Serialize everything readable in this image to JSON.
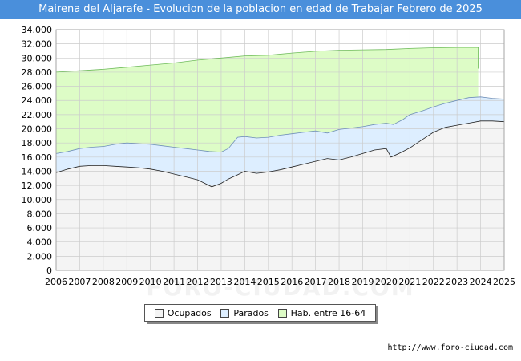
{
  "title": "Mairena del Aljarafe - Evolucion de la poblacion en edad de Trabajar Febrero de 2025",
  "source_url": "http://www.foro-ciudad.com",
  "watermark": "FORO-CIUDAD.COM",
  "colors": {
    "title_bg": "#4a8fdb",
    "hab_fill": "#ddfcc6",
    "hab_line": "#6fbb5b",
    "parados_fill": "#ddeeff",
    "parados_line": "#6f8fb8",
    "ocupados_fill": "#f4f4f4",
    "ocupados_line": "#222222",
    "grid": "#cccccc"
  },
  "legend": [
    {
      "label": "Ocupados",
      "color": "#f4f4f4"
    },
    {
      "label": "Parados",
      "color": "#ddeeff"
    },
    {
      "label": "Hab. entre 16-64",
      "color": "#ddfcc6"
    }
  ],
  "chart_data": {
    "type": "area",
    "title": "Mairena del Aljarafe - Evolucion de la poblacion en edad de Trabajar Febrero de 2025",
    "xlabel": "",
    "ylabel": "",
    "xlim": [
      2006,
      2025
    ],
    "ylim": [
      0,
      34000
    ],
    "x_ticks": [
      "2006",
      "2007",
      "2008",
      "2009",
      "2010",
      "2011",
      "2012",
      "2013",
      "2014",
      "2015",
      "2016",
      "2017",
      "2018",
      "2019",
      "2020",
      "2021",
      "2022",
      "2023",
      "2024",
      "2025"
    ],
    "y_ticks": [
      "0",
      "2.000",
      "4.000",
      "6.000",
      "8.000",
      "10.000",
      "12.000",
      "14.000",
      "16.000",
      "18.000",
      "20.000",
      "22.000",
      "24.000",
      "26.000",
      "28.000",
      "30.000",
      "32.000",
      "34.000"
    ],
    "grid": true,
    "series": [
      {
        "name": "Hab. entre 16-64",
        "x": [
          2006,
          2007,
          2008,
          2009,
          2010,
          2011,
          2012,
          2013,
          2014,
          2015,
          2016,
          2017,
          2018,
          2019,
          2020,
          2021,
          2022,
          2023,
          2023.9
        ],
        "values": [
          28000,
          28200,
          28400,
          28700,
          29000,
          29300,
          29700,
          30000,
          30300,
          30400,
          30700,
          30950,
          31100,
          31150,
          31200,
          31350,
          31450,
          31500,
          31500
        ]
      },
      {
        "name": "Parados",
        "x": [
          2006,
          2006.5,
          2007,
          2007.5,
          2008,
          2008.5,
          2009,
          2009.5,
          2010,
          2010.5,
          2011,
          2011.5,
          2012,
          2012.5,
          2013,
          2013.3,
          2013.7,
          2014,
          2014.5,
          2015,
          2015.5,
          2016,
          2016.5,
          2017,
          2017.5,
          2018,
          2018.5,
          2019,
          2019.5,
          2020,
          2020.3,
          2020.7,
          2021,
          2021.5,
          2022,
          2022.5,
          2023,
          2023.5,
          2024,
          2024.5,
          2025
        ],
        "values": [
          16500,
          16800,
          17200,
          17400,
          17500,
          17800,
          18000,
          17900,
          17800,
          17600,
          17400,
          17200,
          17000,
          16800,
          16700,
          17200,
          18800,
          18900,
          18700,
          18800,
          19100,
          19300,
          19500,
          19700,
          19400,
          19900,
          20100,
          20300,
          20600,
          20800,
          20600,
          21300,
          22000,
          22500,
          23100,
          23600,
          24000,
          24400,
          24500,
          24300,
          24200
        ]
      },
      {
        "name": "Ocupados",
        "x": [
          2006,
          2006.5,
          2007,
          2007.5,
          2008,
          2008.5,
          2009,
          2009.5,
          2010,
          2010.5,
          2011,
          2011.5,
          2012,
          2012.3,
          2012.6,
          2013,
          2013.3,
          2013.7,
          2014,
          2014.5,
          2015,
          2015.5,
          2016,
          2016.5,
          2017,
          2017.5,
          2018,
          2018.5,
          2019,
          2019.5,
          2020,
          2020.2,
          2020.6,
          2021,
          2021.5,
          2022,
          2022.5,
          2023,
          2023.5,
          2024,
          2024.5,
          2025
        ],
        "values": [
          13800,
          14300,
          14700,
          14800,
          14800,
          14700,
          14600,
          14500,
          14300,
          14000,
          13600,
          13200,
          12800,
          12300,
          11800,
          12300,
          12900,
          13500,
          14000,
          13700,
          13900,
          14200,
          14600,
          15000,
          15400,
          15800,
          15600,
          16000,
          16500,
          17000,
          17200,
          16000,
          16600,
          17300,
          18400,
          19500,
          20200,
          20500,
          20800,
          21100,
          21100,
          21000
        ]
      }
    ]
  }
}
